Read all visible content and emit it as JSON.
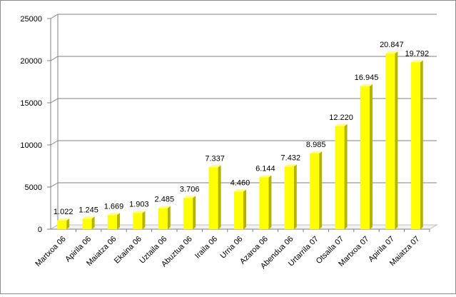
{
  "chart_data": {
    "type": "bar",
    "categories": [
      "Martxoa 06",
      "Apirila 06",
      "Maiatza 06",
      "Ekaina 06",
      "Uztaila 06",
      "Abuztua 06",
      "Iraila 06",
      "Urria 06",
      "Azaroa 06",
      "Abendua 06",
      "Urtarrila 07",
      "Otsaila 07",
      "Martxoa 07",
      "Apirila 07",
      "Maiatza 07"
    ],
    "values": [
      1022,
      1245,
      1669,
      1903,
      2485,
      3706,
      7337,
      4460,
      6144,
      7432,
      8985,
      12220,
      16945,
      20847,
      19792
    ],
    "data_labels": [
      "1.022",
      "1.245",
      "1.669",
      "1.903",
      "2.485",
      "3.706",
      "7.337",
      "4.460",
      "6.144",
      "7.432",
      "8.985",
      "12.220",
      "16.945",
      "20.847",
      "19.792"
    ],
    "y_ticks": [
      0,
      5000,
      10000,
      15000,
      20000,
      25000
    ],
    "ylim": [
      0,
      25000
    ],
    "title": "",
    "xlabel": "",
    "ylabel": "",
    "grid": true,
    "legend": "none",
    "style": "3d-column",
    "colors": {
      "bar_front": "#ffff00",
      "bar_side": "#b3b300",
      "bar_top": "#ffff80",
      "grid": "#808080",
      "floor": "#c0c0c0"
    }
  }
}
